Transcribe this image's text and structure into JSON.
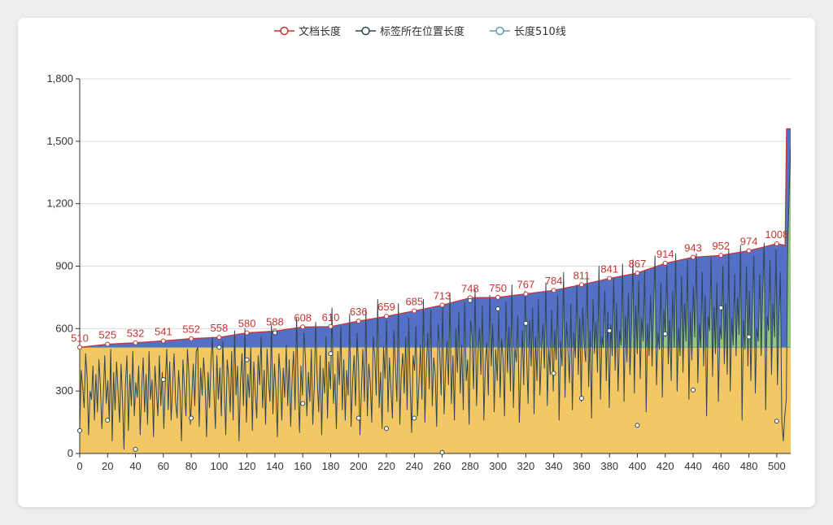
{
  "chart_data": {
    "type": "area",
    "title": "",
    "legend": {
      "placement": "top-center",
      "items": [
        {
          "name": "文档长度",
          "color": "#c23531"
        },
        {
          "name": "标签所在位置长度",
          "color": "#2f4554"
        },
        {
          "name": "长度510线",
          "color": "#61a0a8"
        }
      ]
    },
    "xlim": [
      0,
      510
    ],
    "ylim": [
      0,
      1800
    ],
    "x_ticks": [
      "0",
      "20",
      "40",
      "60",
      "80",
      "100",
      "120",
      "140",
      "160",
      "180",
      "200",
      "220",
      "240",
      "260",
      "280",
      "300",
      "320",
      "340",
      "360",
      "380",
      "400",
      "420",
      "440",
      "460",
      "480",
      "500"
    ],
    "y_ticks": [
      "0",
      "300",
      "600",
      "900",
      "1,200",
      "1,500",
      "1,800"
    ],
    "grid": true,
    "fill_colors": {
      "below_510": "#f3c764",
      "position_above_510": "#91c77e",
      "document_above_position": "#5470c6"
    },
    "threshold_line": {
      "name": "长度510线",
      "value": 510
    },
    "series": [
      {
        "name": "文档长度",
        "color": "#c23531",
        "labeled_points": [
          {
            "x": 0,
            "y": 510,
            "label": "510"
          },
          {
            "x": 20,
            "y": 525,
            "label": "525"
          },
          {
            "x": 40,
            "y": 532,
            "label": "532"
          },
          {
            "x": 60,
            "y": 541,
            "label": "541"
          },
          {
            "x": 80,
            "y": 552,
            "label": "552"
          },
          {
            "x": 100,
            "y": 558,
            "label": "558"
          },
          {
            "x": 120,
            "y": 580,
            "label": "580"
          },
          {
            "x": 140,
            "y": 588,
            "label": "588"
          },
          {
            "x": 160,
            "y": 608,
            "label": "608"
          },
          {
            "x": 180,
            "y": 610,
            "label": "610"
          },
          {
            "x": 200,
            "y": 636,
            "label": "636"
          },
          {
            "x": 220,
            "y": 659,
            "label": "659"
          },
          {
            "x": 240,
            "y": 685,
            "label": "685"
          },
          {
            "x": 260,
            "y": 713,
            "label": "713"
          },
          {
            "x": 280,
            "y": 748,
            "label": "748"
          },
          {
            "x": 300,
            "y": 750,
            "label": "750"
          },
          {
            "x": 320,
            "y": 767,
            "label": "767"
          },
          {
            "x": 340,
            "y": 784,
            "label": "784"
          },
          {
            "x": 360,
            "y": 811,
            "label": "811"
          },
          {
            "x": 380,
            "y": 841,
            "label": "841"
          },
          {
            "x": 400,
            "y": 867,
            "label": "867"
          },
          {
            "x": 420,
            "y": 914,
            "label": "914"
          },
          {
            "x": 440,
            "y": 943,
            "label": "943"
          },
          {
            "x": 460,
            "y": 952,
            "label": "952"
          },
          {
            "x": 480,
            "y": 974,
            "label": "974"
          },
          {
            "x": 500,
            "y": 1008,
            "label": "1008"
          }
        ],
        "end_points": [
          {
            "x": 506,
            "y": 1000
          },
          {
            "x": 507,
            "y": 1560
          },
          {
            "x": 510,
            "y": 1560
          }
        ]
      },
      {
        "name": "标签所在位置长度",
        "color": "#2f4554",
        "sampled_points": [
          {
            "x": 0,
            "y": 110
          },
          {
            "x": 20,
            "y": 160
          },
          {
            "x": 40,
            "y": 20
          },
          {
            "x": 60,
            "y": 355
          },
          {
            "x": 80,
            "y": 170
          },
          {
            "x": 100,
            "y": 510
          },
          {
            "x": 120,
            "y": 450
          },
          {
            "x": 140,
            "y": 580
          },
          {
            "x": 160,
            "y": 240
          },
          {
            "x": 180,
            "y": 480
          },
          {
            "x": 200,
            "y": 170
          },
          {
            "x": 220,
            "y": 120
          },
          {
            "x": 240,
            "y": 170
          },
          {
            "x": 260,
            "y": 5
          },
          {
            "x": 280,
            "y": 735
          },
          {
            "x": 300,
            "y": 695
          },
          {
            "x": 320,
            "y": 625
          },
          {
            "x": 340,
            "y": 385
          },
          {
            "x": 360,
            "y": 265
          },
          {
            "x": 380,
            "y": 590
          },
          {
            "x": 400,
            "y": 135
          },
          {
            "x": 420,
            "y": 575
          },
          {
            "x": 440,
            "y": 305
          },
          {
            "x": 460,
            "y": 700
          },
          {
            "x": 480,
            "y": 560
          },
          {
            "x": 500,
            "y": 155
          }
        ],
        "line_values": [
          110,
          400,
          320,
          220,
          480,
          360,
          90,
          300,
          260,
          420,
          160,
          380,
          200,
          450,
          330,
          120,
          280,
          470,
          240,
          350,
          160,
          500,
          60,
          390,
          210,
          440,
          300,
          150,
          430,
          260,
          20,
          330,
          470,
          110,
          380,
          230,
          490,
          180,
          340,
          270,
          420,
          90,
          310,
          460,
          200,
          380,
          140,
          490,
          260,
          355,
          80,
          420,
          300,
          180,
          470,
          230,
          390,
          120,
          340,
          500,
          210,
          440,
          160,
          330,
          480,
          250,
          170,
          400,
          290,
          60,
          450,
          320,
          180,
          500,
          380,
          140,
          270,
          430,
          230,
          490,
          510,
          130,
          410,
          280,
          460,
          340,
          80,
          390,
          220,
          450,
          560,
          300,
          120,
          470,
          260,
          410,
          180,
          540,
          320,
          90,
          450,
          370,
          200,
          490,
          160,
          590,
          280,
          420,
          60,
          340,
          480,
          230,
          600,
          150,
          380,
          270,
          510,
          110,
          440,
          290,
          170,
          470,
          330,
          560,
          220,
          400,
          140,
          500,
          350,
          250,
          620,
          190,
          430,
          300,
          80,
          480,
          380,
          160,
          410,
          270,
          520,
          230,
          450,
          130,
          360,
          490,
          210,
          650,
          340,
          100,
          420,
          280,
          580,
          470,
          180,
          390,
          250,
          500,
          140,
          320,
          630,
          360,
          200,
          470,
          90,
          410,
          290,
          560,
          170,
          440,
          310,
          700,
          240,
          380,
          120,
          490,
          330,
          610,
          210,
          450,
          160,
          400,
          280,
          670,
          130,
          350,
          470,
          230,
          580,
          420,
          90,
          310,
          500,
          250,
          690,
          180,
          430,
          340,
          150,
          560,
          470,
          280,
          740,
          220,
          390,
          120,
          510,
          360,
          640,
          200,
          460,
          310,
          170,
          590,
          430,
          250,
          720,
          140,
          380,
          480,
          290,
          560,
          210,
          650,
          330,
          100,
          470,
          400,
          610,
          180,
          350,
          520,
          260,
          740,
          150,
          420,
          580,
          310,
          690,
          230,
          460,
          380,
          130,
          620,
          500,
          280,
          720,
          190,
          400,
          540,
          330,
          770,
          240,
          470,
          160,
          600,
          390,
          680,
          290,
          520,
          210,
          730,
          350,
          450,
          140,
          640,
          560,
          310,
          790,
          230,
          480,
          600,
          380,
          710,
          160,
          440,
          530,
          280,
          760,
          420,
          620,
          200,
          500,
          350,
          680,
          270,
          550,
          460,
          180,
          730,
          390,
          610,
          300,
          810,
          220,
          510,
          440,
          660,
          150,
          380,
          590,
          330,
          780,
          470,
          240,
          640,
          420,
          700,
          190,
          560,
          350,
          740,
          280,
          480,
          620,
          410,
          820,
          230,
          510,
          380,
          690,
          300,
          590,
          450,
          760,
          160,
          540,
          420,
          870,
          270,
          630,
          500,
          340,
          720,
          210,
          580,
          460,
          810,
          380,
          650,
          250,
          700,
          520,
          440,
          860,
          320,
          590,
          170,
          740,
          480,
          630,
          390,
          900,
          260,
          560,
          510,
          780,
          350,
          680,
          220,
          620,
          470,
          840,
          400,
          720,
          300,
          590,
          520,
          910,
          250,
          660,
          440,
          770,
          380,
          600,
          930,
          290,
          710,
          480,
          830,
          360,
          650,
          540,
          880,
          200,
          620,
          470,
          760,
          420,
          700,
          950,
          330,
          580,
          500,
          820,
          270,
          690,
          560,
          900,
          430,
          640,
          350,
          780,
          510,
          960,
          300,
          600,
          470,
          850,
          390,
          720,
          540,
          930,
          260,
          680,
          450,
          800,
          560,
          960,
          340,
          620,
          510,
          870,
          420,
          760,
          180,
          660,
          590,
          940,
          370,
          700,
          480,
          820,
          250,
          610,
          550,
          900,
          430,
          720,
          380,
          980,
          300,
          650,
          520,
          860,
          470,
          750,
          570,
          1000,
          160,
          640,
          500,
          900,
          420,
          780,
          350,
          690,
          950,
          290,
          600,
          540,
          860,
          470,
          760,
          1010,
          210,
          660,
          590,
          930,
          380,
          720,
          560,
          980,
          330,
          640,
          870,
          150,
          60,
          180,
          260,
          1000,
          1250,
          1480
        ]
      },
      {
        "name": "长度510线",
        "color": "#61a0a8",
        "constant": 510
      }
    ]
  }
}
